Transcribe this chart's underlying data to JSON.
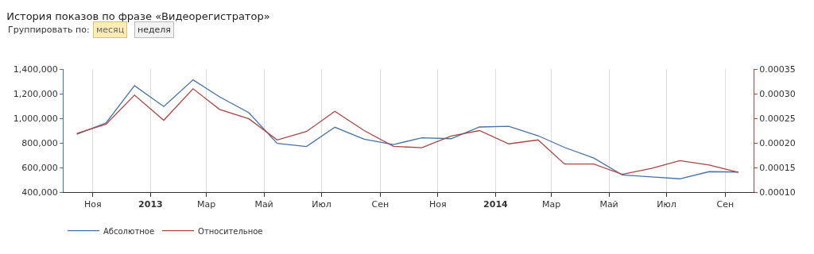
{
  "chart_data": {
    "type": "line",
    "title": "История показов по фразе «Видеорегистратор»",
    "annotations": [
      "Группировать по:",
      "месяц",
      "неделя"
    ],
    "x": [
      "2012-10-15",
      "2012-11-15",
      "2012-12-15",
      "2013-01-15",
      "2013-02-15",
      "2013-03-15",
      "2013-04-15",
      "2013-05-15",
      "2013-06-15",
      "2013-07-15",
      "2013-08-15",
      "2013-09-15",
      "2013-10-15",
      "2013-11-15",
      "2013-12-15",
      "2014-01-15",
      "2014-02-15",
      "2014-03-15",
      "2014-04-15",
      "2014-05-15",
      "2014-06-15",
      "2014-07-15",
      "2014-08-15",
      "2014-09-15"
    ],
    "series": [
      {
        "name": "Абсолютное",
        "color": "#4572a7",
        "values": [
          870000,
          963000,
          1265000,
          1095000,
          1312000,
          1174000,
          1045000,
          796000,
          770000,
          927000,
          830000,
          787000,
          841000,
          834000,
          929000,
          935000,
          858000,
          763000,
          677000,
          540000,
          523000,
          508000,
          566000,
          563000
        ]
      },
      {
        "name": "Относительное",
        "color": "#aa4643",
        "axis": "y2",
        "values": [
          0.000219,
          0.000238,
          0.000297,
          0.000246,
          0.00031,
          0.000268,
          0.000249,
          0.000206,
          0.000223,
          0.000264,
          0.000225,
          0.000193,
          0.00019,
          0.000214,
          0.000225,
          0.000198,
          0.000206,
          0.000157,
          0.000157,
          0.000136,
          0.000148,
          0.000164,
          0.000155,
          0.00014
        ]
      }
    ],
    "xlim": [
      "2012-10-01",
      "2014-10-01"
    ],
    "xticks": [
      {
        "value": "2012-11-01",
        "label": "Ноя"
      },
      {
        "value": "2013-01-01",
        "label": "2013"
      },
      {
        "value": "2013-03-01",
        "label": "Мар"
      },
      {
        "value": "2013-05-01",
        "label": "Май"
      },
      {
        "value": "2013-07-01",
        "label": "Июл"
      },
      {
        "value": "2013-09-01",
        "label": "Сен"
      },
      {
        "value": "2013-11-01",
        "label": "Ноя"
      },
      {
        "value": "2014-01-01",
        "label": "2014"
      },
      {
        "value": "2014-03-01",
        "label": "Мар"
      },
      {
        "value": "2014-05-01",
        "label": "Май"
      },
      {
        "value": "2014-07-01",
        "label": "Июл"
      },
      {
        "value": "2014-09-01",
        "label": "Сен"
      }
    ],
    "ylim": [
      400000,
      1400000
    ],
    "yticks": [
      {
        "value": 400000,
        "label": "400,000"
      },
      {
        "value": 600000,
        "label": "600,000"
      },
      {
        "value": 800000,
        "label": "800,000"
      },
      {
        "value": 1000000,
        "label": "1,000,000"
      },
      {
        "value": 1200000,
        "label": "1,200,000"
      },
      {
        "value": 1400000,
        "label": "1,400,000"
      }
    ],
    "y2lim": [
      0.0001,
      0.00035
    ],
    "y2ticks": [
      {
        "value": 0.0001,
        "label": "0.00010"
      },
      {
        "value": 0.00015,
        "label": "0.00015"
      },
      {
        "value": 0.0002,
        "label": "0.00020"
      },
      {
        "value": 0.00025,
        "label": "0.00025"
      },
      {
        "value": 0.0003,
        "label": "0.00030"
      },
      {
        "value": 0.00035,
        "label": "0.00035"
      }
    ],
    "grid": "x",
    "legend": "bottom left",
    "marker": "none",
    "line_style": "solid"
  }
}
